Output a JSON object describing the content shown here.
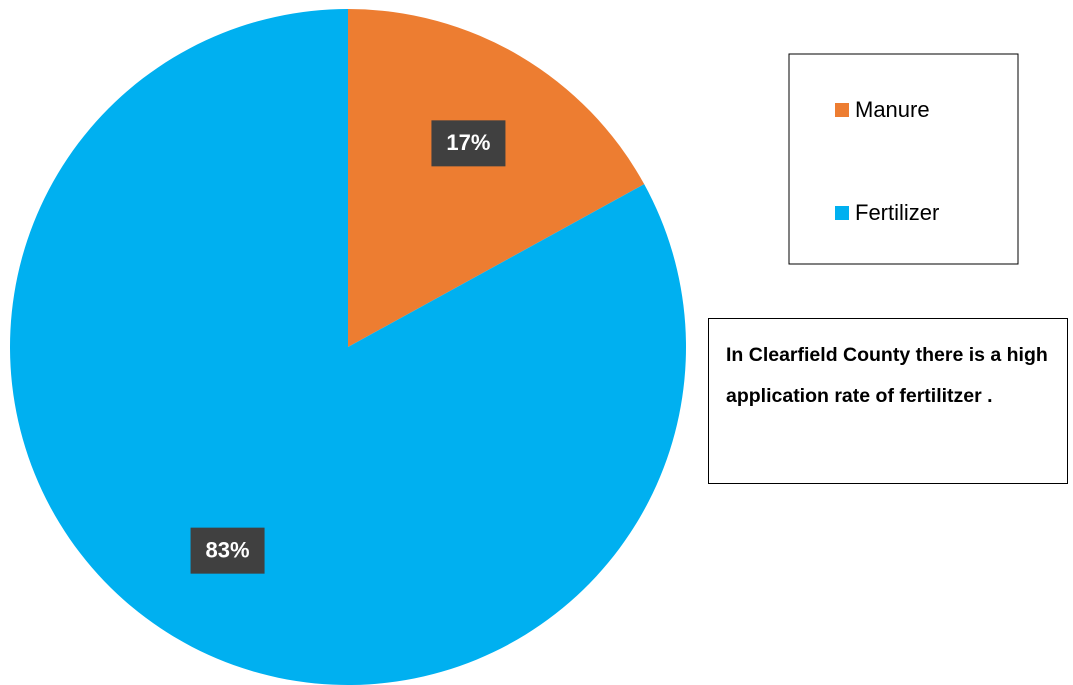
{
  "chart_data": {
    "type": "pie",
    "categories": [
      "Manure",
      "Fertilizer"
    ],
    "values": [
      17,
      83
    ],
    "value_labels": [
      "17%",
      "83%"
    ],
    "colors": [
      "#ED7D31",
      "#00B0F0"
    ],
    "legend": "right",
    "annotation": "In Clearfield County there is a high application rate of fertilitzer ."
  }
}
